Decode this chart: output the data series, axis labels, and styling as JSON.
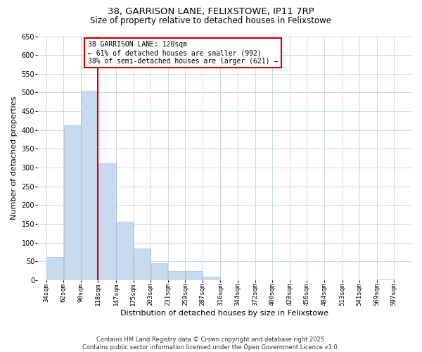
{
  "title": "38, GARRISON LANE, FELIXSTOWE, IP11 7RP",
  "subtitle": "Size of property relative to detached houses in Felixstowe",
  "xlabel": "Distribution of detached houses by size in Felixstowe",
  "ylabel": "Number of detached properties",
  "bar_left_edges": [
    34,
    62,
    90,
    118,
    147,
    175,
    203,
    231,
    259,
    287,
    316,
    344,
    372,
    400,
    428,
    456,
    484,
    513,
    541,
    569
  ],
  "bar_widths": [
    28,
    28,
    28,
    29,
    28,
    28,
    28,
    28,
    28,
    29,
    28,
    28,
    28,
    28,
    28,
    28,
    29,
    28,
    28,
    28
  ],
  "bar_heights": [
    62,
    412,
    505,
    312,
    155,
    84,
    46,
    25,
    25,
    10,
    0,
    0,
    0,
    0,
    0,
    0,
    0,
    0,
    0,
    2
  ],
  "bar_color": "#c8daf0",
  "bar_edge_color": "#a0bcd8",
  "ylim": [
    0,
    650
  ],
  "yticks": [
    0,
    50,
    100,
    150,
    200,
    250,
    300,
    350,
    400,
    450,
    500,
    550,
    600,
    650
  ],
  "xtick_labels": [
    "34sqm",
    "62sqm",
    "90sqm",
    "118sqm",
    "147sqm",
    "175sqm",
    "203sqm",
    "231sqm",
    "259sqm",
    "287sqm",
    "316sqm",
    "344sqm",
    "372sqm",
    "400sqm",
    "428sqm",
    "456sqm",
    "484sqm",
    "513sqm",
    "541sqm",
    "569sqm",
    "597sqm"
  ],
  "xtick_positions": [
    34,
    62,
    90,
    118,
    147,
    175,
    203,
    231,
    259,
    287,
    316,
    344,
    372,
    400,
    428,
    456,
    484,
    513,
    541,
    569,
    597
  ],
  "property_line_x": 118,
  "annotation_text": "38 GARRISON LANE: 120sqm\n← 61% of detached houses are smaller (992)\n38% of semi-detached houses are larger (621) →",
  "annotation_box_color": "#cc0000",
  "background_color": "#ffffff",
  "grid_color": "#c8d8e8",
  "footer_line1": "Contains HM Land Registry data © Crown copyright and database right 2025.",
  "footer_line2": "Contains public sector information licensed under the Open Government Licence v3.0."
}
